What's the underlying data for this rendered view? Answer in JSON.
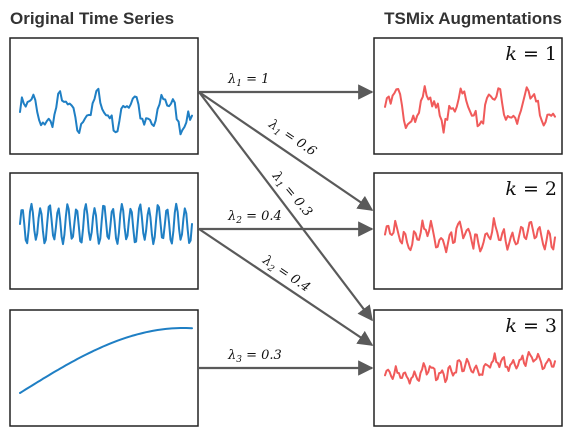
{
  "headers": {
    "left": "Original Time Series",
    "right": "TSMix Augmentations"
  },
  "colors": {
    "original": "#1f7fc4",
    "augmented": "#f05a5a",
    "arrow": "#5a5a5a",
    "frame": "#222222"
  },
  "original_series": [
    {
      "id": "series-1",
      "pattern": "noisy-periodic"
    },
    {
      "id": "series-2",
      "pattern": "fast-periodic"
    },
    {
      "id": "series-3",
      "pattern": "smooth-trend"
    }
  ],
  "augmentations": [
    {
      "k_label": "k = 1",
      "k_var": "k",
      "k_eq": " = 1"
    },
    {
      "k_label": "k = 2",
      "k_var": "k",
      "k_eq": " = 2"
    },
    {
      "k_label": "k = 3",
      "k_var": "k",
      "k_eq": " = 3"
    }
  ],
  "edges": [
    {
      "from": 1,
      "to": 1,
      "sym": "λ",
      "sub": "1",
      "rest": " = 1"
    },
    {
      "from": 1,
      "to": 2,
      "sym": "λ",
      "sub": "1",
      "rest": " = 0.6"
    },
    {
      "from": 1,
      "to": 3,
      "sym": "λ",
      "sub": "1",
      "rest": " = 0.3"
    },
    {
      "from": 2,
      "to": 2,
      "sym": "λ",
      "sub": "2",
      "rest": " = 0.4"
    },
    {
      "from": 2,
      "to": 3,
      "sym": "λ",
      "sub": "2",
      "rest": " = 0.4"
    },
    {
      "from": 3,
      "to": 3,
      "sym": "λ",
      "sub": "3",
      "rest": " = 0.3"
    }
  ]
}
